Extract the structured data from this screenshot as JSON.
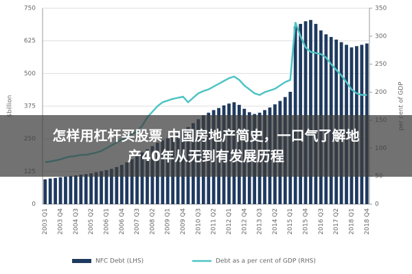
{
  "chart_data": {
    "type": "bar-line",
    "y_label": "$billion",
    "y2_label": "per cent of GDP",
    "categories": [
      "2003 Q1",
      null,
      null,
      "2003 Q4",
      null,
      null,
      "2004 Q3",
      null,
      null,
      "2005 Q2",
      null,
      null,
      "2006 Q1",
      null,
      null,
      "2006 Q4",
      null,
      null,
      "2007 Q3",
      null,
      null,
      "2008 Q2",
      null,
      null,
      "2009 Q1",
      null,
      null,
      "2009 Q4",
      null,
      null,
      "2010 Q3",
      null,
      null,
      "2011 Q2",
      null,
      null,
      "2012 Q1",
      null,
      null,
      "2012 Q4",
      null,
      null,
      "2013 Q3",
      null,
      null,
      "2014 Q2",
      null,
      null,
      "2015 Q1",
      null,
      null,
      "2015 Q4",
      null,
      null,
      "2016 Q3",
      null,
      null,
      "2017 Q2",
      null,
      null,
      "2018 Q1",
      null,
      null,
      "2018 Q4"
    ],
    "series": [
      {
        "name": "NFC Debt (LHS)",
        "color": "#1f3a5f",
        "kind": "bar",
        "values": [
          95,
          98,
          100,
          103,
          105,
          108,
          110,
          113,
          115,
          118,
          122,
          126,
          130,
          135,
          142,
          150,
          160,
          172,
          185,
          198,
          210,
          222,
          235,
          245,
          252,
          260,
          270,
          282,
          295,
          310,
          325,
          340,
          350,
          360,
          368,
          378,
          385,
          390,
          380,
          365,
          352,
          345,
          350,
          360,
          370,
          382,
          395,
          410,
          430,
          680,
          690,
          700,
          705,
          690,
          665,
          650,
          640,
          630,
          620,
          610,
          600,
          605,
          610,
          615
        ]
      },
      {
        "name": "Debt as a per cent of GDP (RHS)",
        "color": "#4ec3c3",
        "kind": "line",
        "axis": "y2",
        "values": [
          75,
          76,
          78,
          80,
          83,
          85,
          86,
          88,
          88,
          90,
          92,
          95,
          100,
          105,
          110,
          115,
          120,
          125,
          130,
          140,
          155,
          165,
          175,
          182,
          185,
          188,
          190,
          192,
          182,
          190,
          198,
          202,
          205,
          210,
          215,
          220,
          225,
          228,
          222,
          212,
          205,
          198,
          195,
          200,
          203,
          206,
          212,
          218,
          222,
          325,
          300,
          280,
          272,
          270,
          268,
          262,
          250,
          240,
          230,
          218,
          205,
          198,
          195,
          195
        ]
      }
    ],
    "ylim": [
      0,
      750
    ],
    "yticks": [
      0,
      125,
      250,
      375,
      500,
      625,
      750
    ],
    "y2lim": [
      0,
      350
    ],
    "y2ticks": [
      0,
      50,
      100,
      150,
      200,
      250,
      300,
      350
    ],
    "grid": true
  },
  "overlay": {
    "lines": [
      "怎样用杠杆买股票 中国房地产简史，一口气了解地",
      "产40年从无到有发展历程"
    ]
  }
}
